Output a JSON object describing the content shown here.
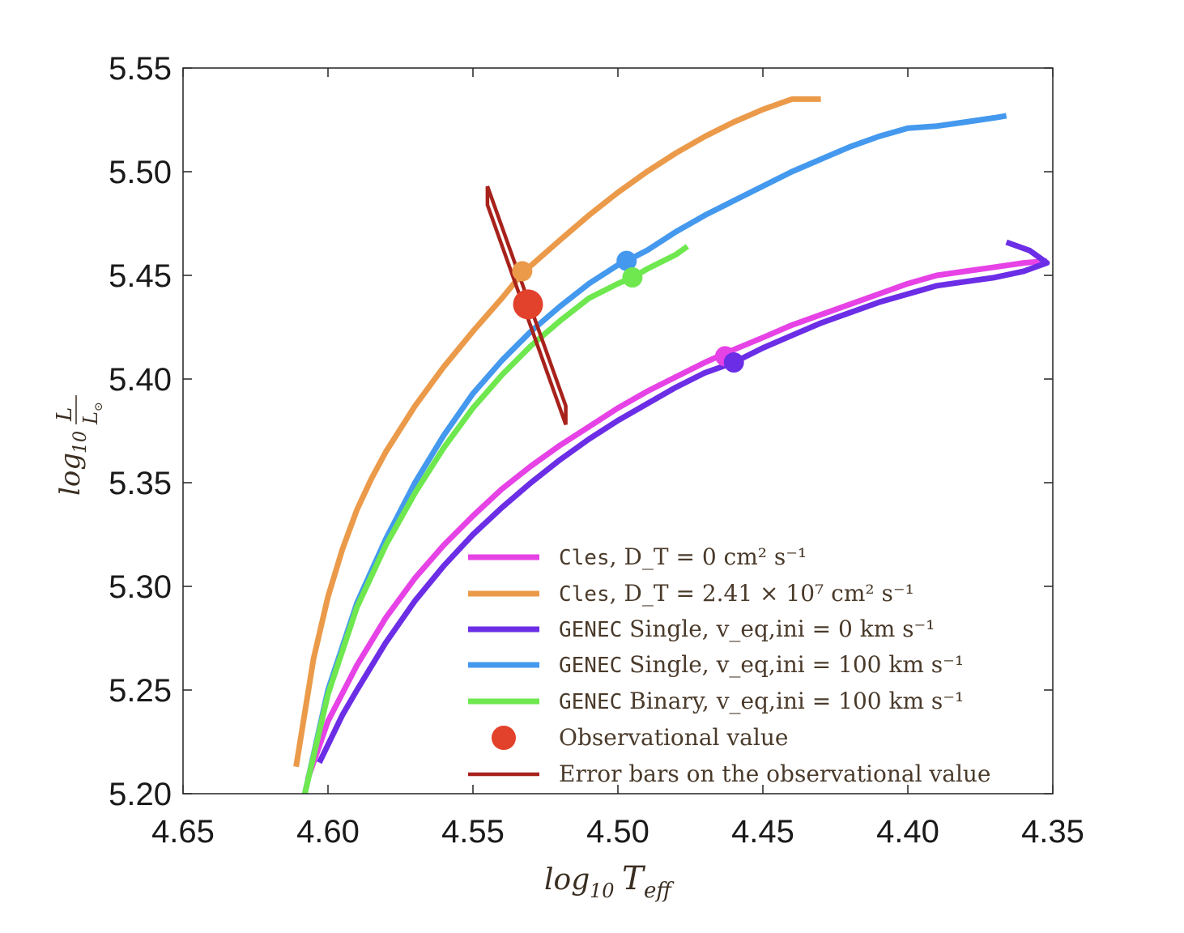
{
  "chart_data": {
    "type": "line",
    "title": "",
    "xlabel": "log10 Teff",
    "ylabel": "log10 L/L⊙",
    "xlim": [
      4.65,
      4.35
    ],
    "ylim": [
      5.2,
      5.55
    ],
    "x_reversed": true,
    "x_ticks": [
      "4.65",
      "4.60",
      "4.55",
      "4.50",
      "4.45",
      "4.40",
      "4.35"
    ],
    "y_ticks": [
      "5.20",
      "5.25",
      "5.30",
      "5.35",
      "5.40",
      "5.45",
      "5.50",
      "5.55"
    ],
    "grid": false,
    "legend_position": "lower-right",
    "series": [
      {
        "name": "Cles, D_T = 0 cm² s⁻¹",
        "legend_code": "Cles",
        "legend_rest": ", D_T = 0 cm² s⁻¹",
        "color": "#e642e6",
        "x": [
          4.607,
          4.6,
          4.59,
          4.58,
          4.57,
          4.56,
          4.55,
          4.54,
          4.53,
          4.52,
          4.51,
          4.5,
          4.49,
          4.48,
          4.47,
          4.462,
          4.45,
          4.44,
          4.43,
          4.42,
          4.41,
          4.4,
          4.39,
          4.38,
          4.37,
          4.36,
          4.352
        ],
        "y": [
          5.207,
          5.235,
          5.262,
          5.285,
          5.304,
          5.32,
          5.334,
          5.347,
          5.358,
          5.368,
          5.377,
          5.386,
          5.394,
          5.401,
          5.408,
          5.413,
          5.42,
          5.426,
          5.431,
          5.436,
          5.441,
          5.446,
          5.45,
          5.452,
          5.454,
          5.456,
          5.457
        ],
        "marker": {
          "x": 4.463,
          "y": 5.411
        }
      },
      {
        "name": "Cles, D_T = 2.41 × 10⁷ cm² s⁻¹",
        "legend_code": "Cles",
        "legend_rest": ", D_T = 2.41 × 10⁷ cm² s⁻¹",
        "color": "#eb9a4a",
        "x": [
          4.611,
          4.605,
          4.6,
          4.595,
          4.59,
          4.585,
          4.58,
          4.57,
          4.56,
          4.55,
          4.54,
          4.533,
          4.52,
          4.51,
          4.5,
          4.49,
          4.48,
          4.47,
          4.46,
          4.45,
          4.44,
          4.43
        ],
        "y": [
          5.213,
          5.265,
          5.295,
          5.318,
          5.337,
          5.352,
          5.365,
          5.387,
          5.406,
          5.423,
          5.439,
          5.451,
          5.467,
          5.479,
          5.49,
          5.5,
          5.509,
          5.517,
          5.524,
          5.53,
          5.535,
          5.535
        ],
        "marker": {
          "x": 4.533,
          "y": 5.452
        }
      },
      {
        "name": "GENEC Single, v_eq,ini = 0 km s⁻¹",
        "legend_code": "GENEC",
        "legend_rest": " Single, v_eq,ini = 0 km s⁻¹",
        "color": "#6b2ee6",
        "x": [
          4.603,
          4.595,
          4.59,
          4.58,
          4.57,
          4.56,
          4.55,
          4.54,
          4.53,
          4.52,
          4.51,
          4.5,
          4.49,
          4.48,
          4.47,
          4.46,
          4.45,
          4.44,
          4.43,
          4.42,
          4.41,
          4.4,
          4.39,
          4.38,
          4.37,
          4.36,
          4.352,
          4.358,
          4.366
        ],
        "y": [
          5.215,
          5.238,
          5.25,
          5.273,
          5.293,
          5.31,
          5.325,
          5.338,
          5.35,
          5.361,
          5.371,
          5.38,
          5.388,
          5.396,
          5.403,
          5.408,
          5.415,
          5.421,
          5.427,
          5.432,
          5.437,
          5.441,
          5.445,
          5.447,
          5.449,
          5.452,
          5.456,
          5.462,
          5.466
        ],
        "marker": {
          "x": 4.46,
          "y": 5.408
        }
      },
      {
        "name": "GENEC Single, v_eq,ini = 100 km s⁻¹",
        "legend_code": "GENEC",
        "legend_rest": " Single, v_eq,ini = 100 km s⁻¹",
        "color": "#4499ee",
        "x": [
          4.608,
          4.6,
          4.59,
          4.58,
          4.57,
          4.56,
          4.55,
          4.54,
          4.53,
          4.52,
          4.51,
          4.5,
          4.497,
          4.49,
          4.48,
          4.47,
          4.46,
          4.45,
          4.44,
          4.43,
          4.42,
          4.41,
          4.4,
          4.39,
          4.38,
          4.37,
          4.366
        ],
        "y": [
          5.2,
          5.25,
          5.292,
          5.323,
          5.35,
          5.373,
          5.393,
          5.409,
          5.423,
          5.435,
          5.446,
          5.455,
          5.457,
          5.462,
          5.471,
          5.479,
          5.486,
          5.493,
          5.5,
          5.506,
          5.512,
          5.517,
          5.521,
          5.522,
          5.524,
          5.526,
          5.527
        ],
        "marker": {
          "x": 4.497,
          "y": 5.457
        }
      },
      {
        "name": "GENEC Binary, v_eq,ini = 100 km s⁻¹",
        "legend_code": "GENEC",
        "legend_rest": " Binary, v_eq,ini = 100 km s⁻¹",
        "color": "#6ee84e",
        "x": [
          4.608,
          4.6,
          4.59,
          4.58,
          4.57,
          4.56,
          4.55,
          4.54,
          4.53,
          4.52,
          4.51,
          4.5,
          4.495,
          4.49,
          4.48,
          4.476
        ],
        "y": [
          5.2,
          5.248,
          5.29,
          5.32,
          5.345,
          5.367,
          5.386,
          5.402,
          5.416,
          5.428,
          5.439,
          5.446,
          5.449,
          5.453,
          5.46,
          5.464
        ],
        "marker": {
          "x": 4.495,
          "y": 5.449
        }
      }
    ],
    "observational_value": {
      "name": "Observational value",
      "x": 4.531,
      "y": 5.436,
      "color": "#e2412b"
    },
    "error_bars": {
      "name": "Error bars on the observational value",
      "color": "#a8221c",
      "outline_x": [
        4.545,
        4.545,
        4.518,
        4.518,
        4.545
      ],
      "outline_y": [
        5.493,
        5.484,
        5.378,
        5.387,
        5.493
      ]
    }
  }
}
